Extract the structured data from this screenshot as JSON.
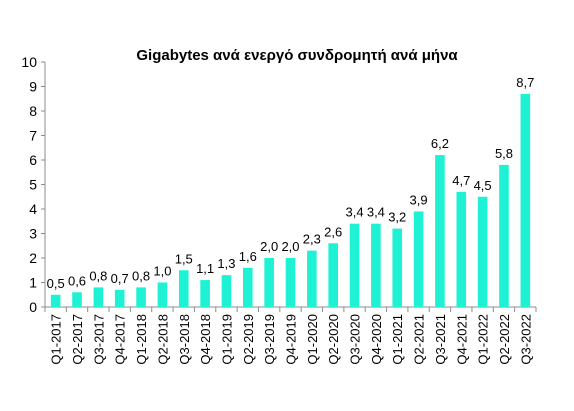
{
  "chart_data": {
    "type": "bar",
    "title": "Gigabytes ανά ενεργό συνδρομητή ανά μήνα",
    "xlabel": "",
    "ylabel": "",
    "ylim": [
      0,
      10
    ],
    "yticks": [
      0,
      1,
      2,
      3,
      4,
      5,
      6,
      7,
      8,
      9,
      10
    ],
    "grid": false,
    "legend": "none",
    "bar_color": "#1ff2d4",
    "categories": [
      "Q1-2017",
      "Q2-2017",
      "Q3-2017",
      "Q4-2017",
      "Q1-2018",
      "Q2-2018",
      "Q3-2018",
      "Q4-2018",
      "Q1-2019",
      "Q2-2019",
      "Q3-2019",
      "Q4-2019",
      "Q1-2020",
      "Q2-2020",
      "Q3-2020",
      "Q4-2020",
      "Q1-2021",
      "Q2-2021",
      "Q3-2021",
      "Q4-2021",
      "Q1-2022",
      "Q2-2022",
      "Q3-2022"
    ],
    "values": [
      0.5,
      0.6,
      0.8,
      0.7,
      0.8,
      1.0,
      1.5,
      1.1,
      1.3,
      1.6,
      2.0,
      2.0,
      2.3,
      2.6,
      3.4,
      3.4,
      3.2,
      3.9,
      6.2,
      4.7,
      4.5,
      5.8,
      8.7
    ],
    "data_labels": [
      "0,5",
      "0,6",
      "0,8",
      "0,7",
      "0,8",
      "1,0",
      "1,5",
      "1,1",
      "1,3",
      "1,6",
      "2,0",
      "2,0",
      "2,3",
      "2,6",
      "3,4",
      "3,4",
      "3,2",
      "3,9",
      "6,2",
      "4,7",
      "4,5",
      "5,8",
      "8,7"
    ]
  }
}
